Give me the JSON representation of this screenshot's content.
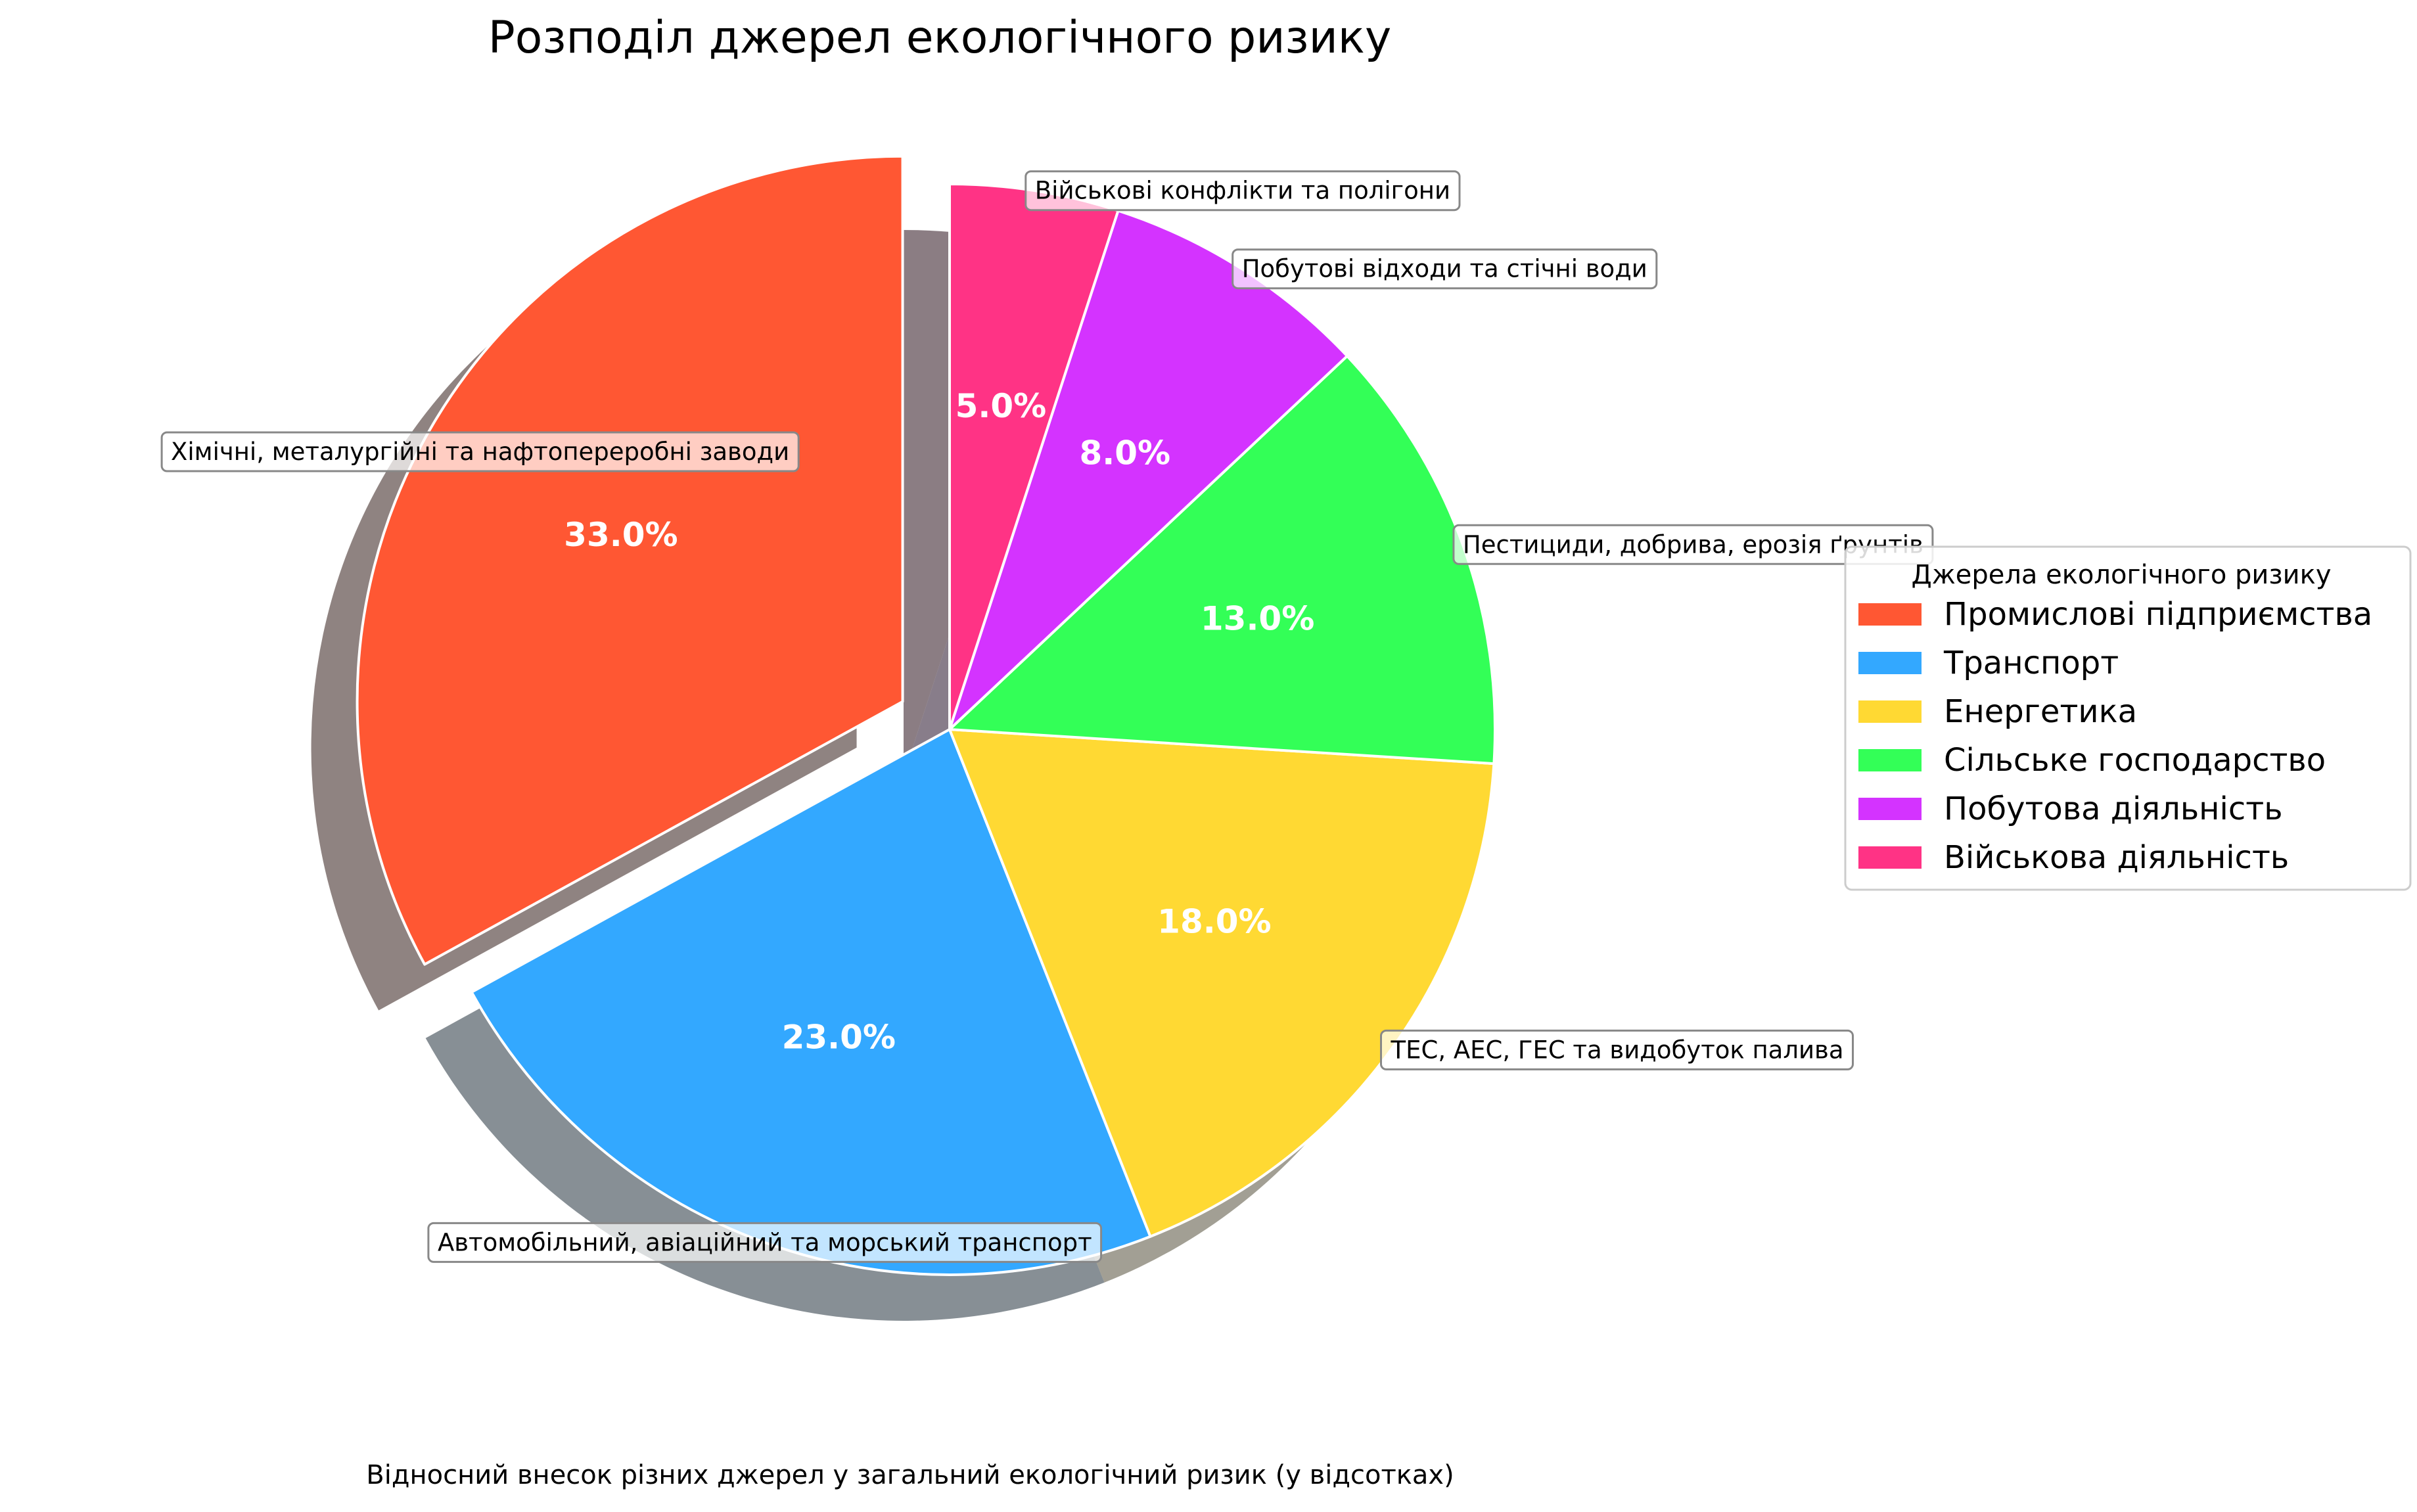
{
  "chart_data": {
    "type": "pie",
    "title": "Розподіл джерел екологічного ризику",
    "caption": "Відносний внесок різних джерел у загальний екологічний ризик (у відсотках)",
    "legend": {
      "title": "Джерела екологічного ризику",
      "placement": "right"
    },
    "start_angle_deg": 90,
    "direction": "counterclockwise",
    "shadow": true,
    "slices": [
      {
        "label": "Промислові підприємства",
        "value": 33.0,
        "pct_label": "33.0%",
        "color": "#ff5733",
        "exploded": true,
        "annotation": "Хімічні, металургійні та нафтопереробні заводи"
      },
      {
        "label": "Транспорт",
        "value": 23.0,
        "pct_label": "23.0%",
        "color": "#33a8ff",
        "exploded": false,
        "annotation": "Автомобільний, авіаційний та морський транспорт"
      },
      {
        "label": "Енергетика",
        "value": 18.0,
        "pct_label": "18.0%",
        "color": "#ffd933",
        "exploded": false,
        "annotation": "ТЕС, АЕС, ГЕС та видобуток палива"
      },
      {
        "label": "Сільське господарство",
        "value": 13.0,
        "pct_label": "13.0%",
        "color": "#33ff57",
        "exploded": false,
        "annotation": "Пестициди, добрива, ерозія ґрунтів"
      },
      {
        "label": "Побутова діяльність",
        "value": 8.0,
        "pct_label": "8.0%",
        "color": "#d433ff",
        "exploded": false,
        "annotation": "Побутові відходи та стічні води"
      },
      {
        "label": "Військова діяльність",
        "value": 5.0,
        "pct_label": "5.0%",
        "color": "#ff3385",
        "exploded": false,
        "annotation": "Військові конфлікти та полігони"
      }
    ]
  }
}
